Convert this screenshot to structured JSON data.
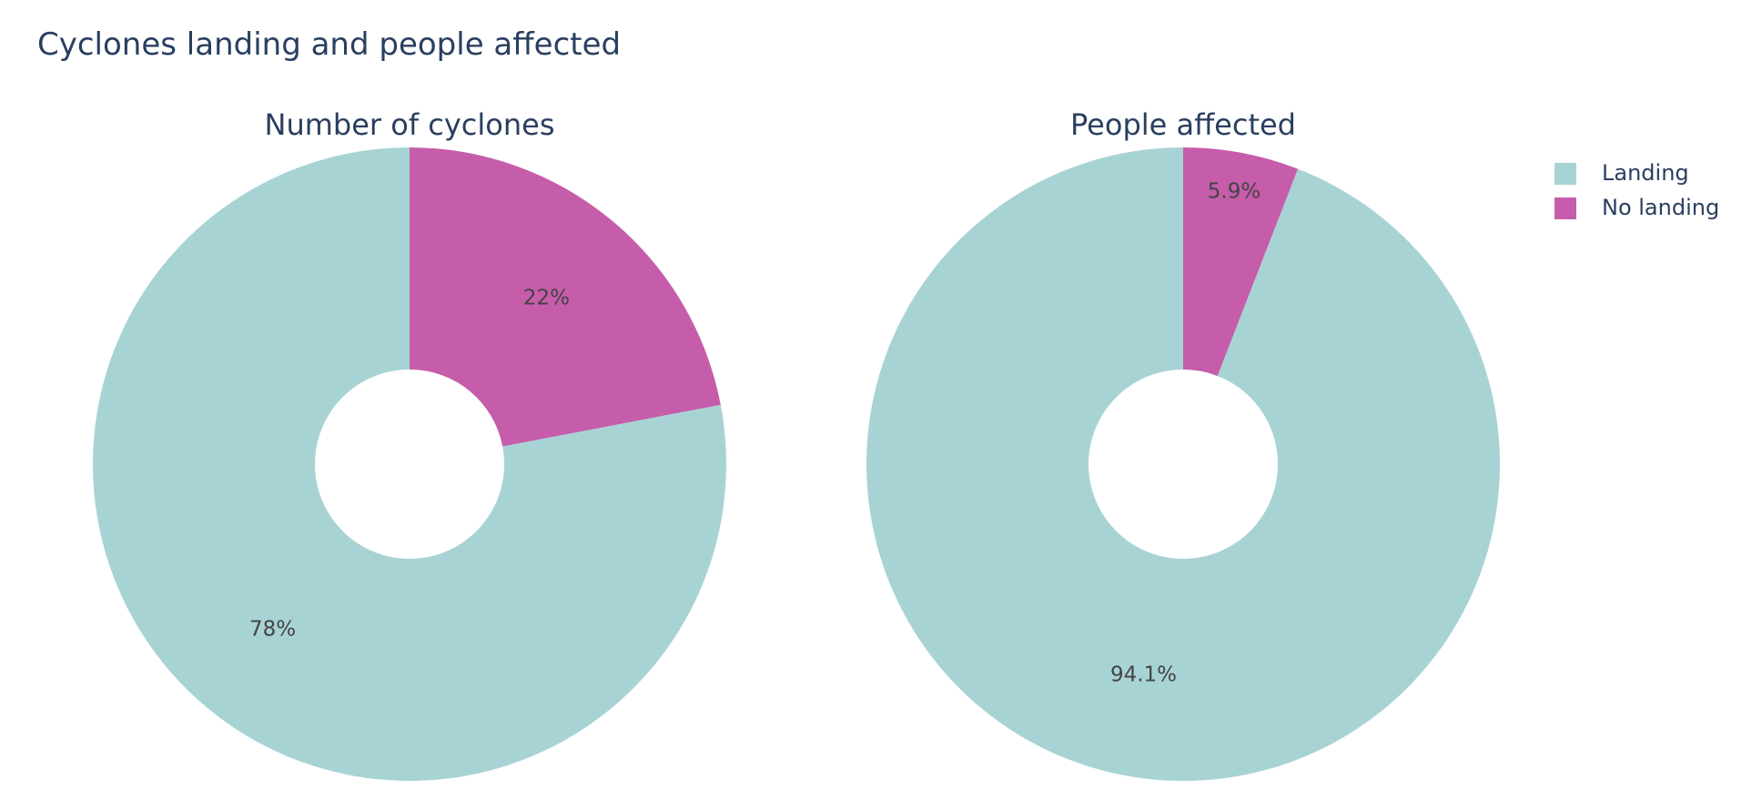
{
  "title": "Cyclones landing and people affected",
  "legend": {
    "placement": "top-right",
    "items": [
      {
        "label": "Landing",
        "color": "#a8d3d5"
      },
      {
        "label": "No landing",
        "color": "#c65dab"
      }
    ]
  },
  "chart_data": [
    {
      "type": "pie",
      "title": "Number of cyclones",
      "hole": true,
      "labels": [
        "Landing",
        "No landing"
      ],
      "values": [
        78,
        22
      ],
      "text_labels": [
        "78%",
        "22%"
      ],
      "colors": [
        "#a8d3d5",
        "#c65dab"
      ]
    },
    {
      "type": "pie",
      "title": "People affected",
      "hole": true,
      "labels": [
        "Landing",
        "No landing"
      ],
      "values": [
        94.1,
        5.9
      ],
      "text_labels": [
        "94.1%",
        "5.9%"
      ],
      "colors": [
        "#a8d3d5",
        "#c65dab"
      ]
    }
  ]
}
